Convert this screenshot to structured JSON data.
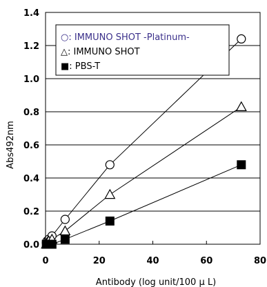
{
  "chart_data": {
    "type": "scatter",
    "title": "",
    "xlabel": "Antibody  (log unit/100 μ L)",
    "ylabel": "Abs492nm",
    "xlim": [
      0,
      80
    ],
    "ylim": [
      0,
      1.4
    ],
    "xticks": [
      "0",
      "20",
      "40",
      "60",
      "80"
    ],
    "yticks": [
      "0.0",
      "0.2",
      "0.4",
      "0.6",
      "0.8",
      "1.0",
      "1.2",
      "1.4"
    ],
    "grid": "horizontal",
    "legend_position": "top-left",
    "series": [
      {
        "name": "IMMUNO SHOT -Platinum-",
        "legend_label": "○: IMMUNO SHOT -Platinum-",
        "marker": "open-circle",
        "legend_color": "#3a2f8a",
        "points": [
          [
            0.3,
            0.01
          ],
          [
            0.6,
            0.02
          ],
          [
            1.2,
            0.03
          ],
          [
            2.4,
            0.05
          ],
          [
            7.3,
            0.15
          ],
          [
            24,
            0.48
          ],
          [
            73,
            1.24
          ]
        ]
      },
      {
        "name": "IMMUNO SHOT",
        "legend_label": "△: IMMUNO SHOT",
        "marker": "open-triangle",
        "legend_color": "#000000",
        "points": [
          [
            0.3,
            0.0
          ],
          [
            0.6,
            0.01
          ],
          [
            1.2,
            0.02
          ],
          [
            2.4,
            0.03
          ],
          [
            7.3,
            0.08
          ],
          [
            24,
            0.3
          ],
          [
            73,
            0.83
          ]
        ]
      },
      {
        "name": "PBS-T",
        "legend_label": "■: PBS-T",
        "marker": "filled-square",
        "legend_color": "#000000",
        "points": [
          [
            0.3,
            0.0
          ],
          [
            0.6,
            0.0
          ],
          [
            2.4,
            0.0
          ],
          [
            7.3,
            0.03
          ],
          [
            24,
            0.14
          ],
          [
            73,
            0.48
          ]
        ]
      }
    ]
  }
}
